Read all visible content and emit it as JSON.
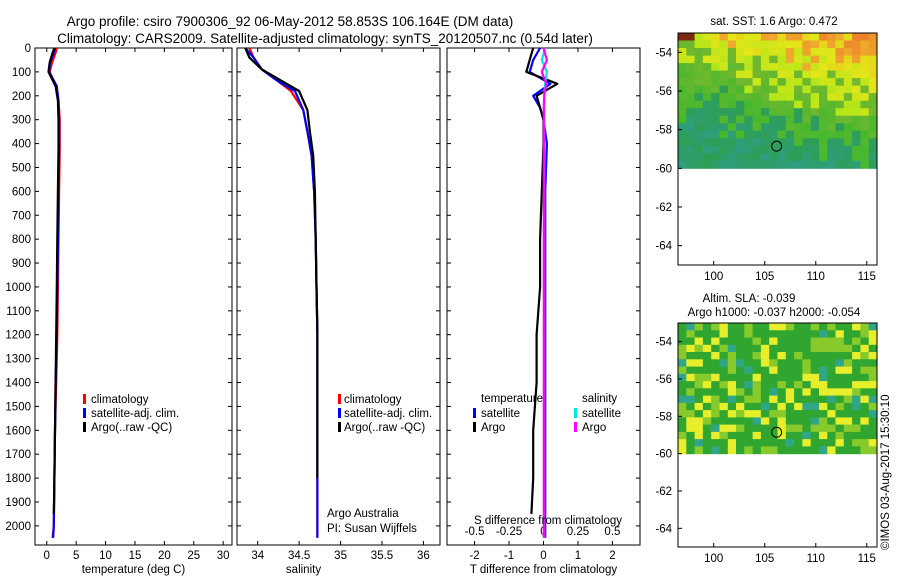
{
  "header": {
    "line1": "Argo profile: csiro 7900306_92 06-May-2012 58.853S 106.164E (DM data)",
    "line2": "Climatology: CARS2009. Satellite-adjusted climatology: synTS_20120507.nc (0.54d later)"
  },
  "colors": {
    "climatology": "#ff0000",
    "satellite_clim": "#0000ff",
    "argo": "#000000",
    "t_satellite": "#0000ff",
    "t_argo": "#000000",
    "s_satellite": "#00e5e5",
    "s_argo": "#ff00ff"
  },
  "legends": {
    "main": [
      "climatology",
      "satellite-adj. clim.",
      "Argo(..raw -QC)"
    ],
    "diff_headers": {
      "temperature": "temperature",
      "salinity": "salinity"
    },
    "diff_items": {
      "satellite": "satellite",
      "argo": "Argo"
    }
  },
  "annotations": {
    "argo_aus": "Argo Australia",
    "pi": "PI: Susan Wijffels",
    "s_diff_label": "S difference from climatology",
    "stamp": "©IMOS 03-Aug-2017 15:30:10"
  },
  "maps": {
    "sst_title": "sat. SST: 1.6 Argo: 0.472",
    "sla_title1": "Altim. SLA: -0.039",
    "sla_title2": "Argo h1000: -0.037 h2000: -0.054"
  },
  "chart_data": [
    {
      "type": "line",
      "name": "temperature-profile",
      "xlabel": "temperature (deg C)",
      "ylabel": "",
      "xlim": [
        -2,
        31.5
      ],
      "ylim": [
        2080,
        0
      ],
      "xticks": [
        0,
        5,
        10,
        15,
        20,
        25,
        30
      ],
      "yticks": [
        0,
        100,
        200,
        300,
        400,
        500,
        600,
        700,
        800,
        900,
        1000,
        1100,
        1200,
        1300,
        1400,
        1500,
        1600,
        1700,
        1800,
        1900,
        2000
      ],
      "series": [
        {
          "name": "climatology",
          "color": "#ff0000",
          "x": [
            1.7,
            1.5,
            0.9,
            0.5,
            1.6,
            2.0,
            2.2,
            2.2,
            2.1,
            2.0,
            1.9,
            1.8,
            1.6,
            1.4,
            1.3,
            1.2,
            1.0
          ],
          "y": [
            0,
            20,
            60,
            100,
            160,
            220,
            300,
            420,
            600,
            800,
            1000,
            1200,
            1400,
            1600,
            1800,
            2000,
            2050
          ]
        },
        {
          "name": "satellite-adj. clim.",
          "color": "#0000ff",
          "x": [
            1.4,
            1.2,
            0.6,
            0.4,
            1.7,
            2.0,
            2.1,
            2.1,
            2.0,
            1.9,
            1.8,
            1.7,
            1.5,
            1.4,
            1.3,
            1.2,
            1.1
          ],
          "y": [
            0,
            20,
            60,
            100,
            160,
            220,
            300,
            420,
            600,
            800,
            1000,
            1200,
            1400,
            1600,
            1800,
            2000,
            2050
          ]
        },
        {
          "name": "Argo(..raw -QC)",
          "color": "#000000",
          "x": [
            1.3,
            1.0,
            0.5,
            0.3,
            1.5,
            1.9,
            2.0,
            2.0,
            1.9,
            1.8,
            1.7,
            1.6,
            1.5,
            1.4,
            1.3,
            1.2
          ],
          "y": [
            0,
            20,
            60,
            100,
            160,
            220,
            300,
            420,
            600,
            800,
            1000,
            1200,
            1400,
            1600,
            1800,
            1950
          ]
        }
      ]
    },
    {
      "type": "line",
      "name": "salinity-profile",
      "xlabel": "salinity",
      "ylabel": "",
      "xlim": [
        33.75,
        36.2
      ],
      "ylim": [
        2080,
        0
      ],
      "xticks": [
        34,
        34.5,
        35,
        35.5,
        36
      ],
      "xticklabels": [
        "34",
        "34.5",
        "35",
        "35.5",
        "36"
      ],
      "series": [
        {
          "name": "climatology",
          "color": "#ff0000",
          "x": [
            33.9,
            33.95,
            34.05,
            34.25,
            34.4,
            34.55,
            34.6,
            34.65,
            34.68,
            34.7,
            34.71,
            34.72,
            34.72,
            34.72,
            34.72,
            34.72
          ],
          "y": [
            0,
            40,
            90,
            140,
            180,
            260,
            350,
            450,
            600,
            800,
            1000,
            1200,
            1400,
            1600,
            1800,
            2050
          ]
        },
        {
          "name": "satellite-adj. clim.",
          "color": "#0000ff",
          "x": [
            33.85,
            33.95,
            34.05,
            34.25,
            34.45,
            34.55,
            34.6,
            34.65,
            34.68,
            34.7,
            34.71,
            34.72,
            34.72,
            34.72,
            34.72,
            34.72
          ],
          "y": [
            0,
            40,
            90,
            140,
            180,
            260,
            350,
            450,
            600,
            800,
            1000,
            1200,
            1400,
            1600,
            1800,
            2050
          ]
        },
        {
          "name": "Argo(..raw -QC)",
          "color": "#000000",
          "x": [
            33.85,
            33.9,
            34.05,
            34.3,
            34.5,
            34.6,
            34.63,
            34.67,
            34.69,
            34.7,
            34.71,
            34.72,
            34.72,
            34.72,
            34.72
          ],
          "y": [
            0,
            40,
            90,
            140,
            180,
            260,
            350,
            450,
            600,
            800,
            1000,
            1200,
            1400,
            1600,
            1800
          ]
        }
      ]
    },
    {
      "type": "line",
      "name": "difference-profile",
      "xlabel": "T difference from climatology",
      "ylabel": "",
      "xlim": [
        -2.8,
        2.8
      ],
      "ylim": [
        2080,
        0
      ],
      "xticks": [
        -2,
        -1,
        0,
        1,
        2
      ],
      "s_xticks": [
        -0.5,
        -0.25,
        0,
        0.25,
        0.5
      ],
      "s_xticklabels": [
        "-0.5",
        "-0.25",
        "0",
        "0.25",
        "0.5"
      ],
      "s_scale": 4,
      "series": [
        {
          "name": "temperature satellite",
          "color": "#0000ff",
          "x": [
            -0.1,
            -0.3,
            -0.4,
            0.2,
            -0.3,
            -0.1,
            0.0,
            0.1,
            0.05,
            0.05,
            0.05,
            0.05,
            0.05,
            0.05,
            0.05,
            0.05
          ],
          "y": [
            0,
            50,
            100,
            150,
            200,
            250,
            300,
            400,
            600,
            800,
            1000,
            1200,
            1400,
            1600,
            1800,
            2050
          ]
        },
        {
          "name": "temperature Argo",
          "color": "#000000",
          "x": [
            -0.3,
            -0.4,
            -0.5,
            0.4,
            -0.2,
            -0.1,
            0.0,
            0.0,
            -0.05,
            -0.1,
            -0.1,
            -0.2,
            -0.2,
            -0.3,
            -0.3,
            -0.35
          ],
          "y": [
            0,
            50,
            100,
            150,
            200,
            250,
            300,
            400,
            600,
            800,
            1000,
            1200,
            1400,
            1600,
            1800,
            1950
          ]
        },
        {
          "name": "salinity satellite",
          "color": "#00e5e5",
          "x": [
            0.05,
            -0.05,
            0.1,
            0.05,
            0.02,
            0.02,
            0.02,
            0.02,
            0.02,
            0.02,
            0.02,
            0.02,
            0.02,
            0.02,
            0.02,
            0.02
          ],
          "y": [
            0,
            50,
            100,
            150,
            200,
            250,
            300,
            400,
            600,
            800,
            1000,
            1200,
            1400,
            1600,
            1800,
            2050
          ]
        },
        {
          "name": "salinity Argo",
          "color": "#ff00ff",
          "x": [
            0.0,
            0.1,
            -0.05,
            0.08,
            0.02,
            0.01,
            0.01,
            0.01,
            0.01,
            0.01,
            0.01,
            0.01,
            0.01,
            0.01,
            0.01,
            0.01
          ],
          "y": [
            0,
            50,
            100,
            150,
            200,
            250,
            300,
            400,
            600,
            800,
            1000,
            1200,
            1400,
            1600,
            1800,
            2050
          ]
        }
      ]
    },
    {
      "type": "heatmap",
      "name": "sst-map",
      "title": "sat. SST: 1.6 Argo: 0.472",
      "xlim": [
        96.5,
        116
      ],
      "ylim": [
        -65,
        -53
      ],
      "xticks": [
        100,
        105,
        110,
        115
      ],
      "yticks": [
        -54,
        -56,
        -58,
        -60,
        -62,
        -64
      ],
      "data_extent": {
        "lat": [
          -53,
          -60
        ],
        "lon": [
          96.5,
          116
        ]
      },
      "float": {
        "lon": 106.164,
        "lat": -58.853
      }
    },
    {
      "type": "heatmap",
      "name": "sla-map",
      "title": "Altim. SLA: -0.039",
      "xlim": [
        96.5,
        116
      ],
      "ylim": [
        -65,
        -53
      ],
      "xticks": [
        100,
        105,
        110,
        115
      ],
      "yticks": [
        -54,
        -56,
        -58,
        -60,
        -62,
        -64
      ],
      "data_extent": {
        "lat": [
          -53,
          -60
        ],
        "lon": [
          96.5,
          116
        ]
      },
      "float": {
        "lon": 106.164,
        "lat": -58.853
      }
    }
  ]
}
